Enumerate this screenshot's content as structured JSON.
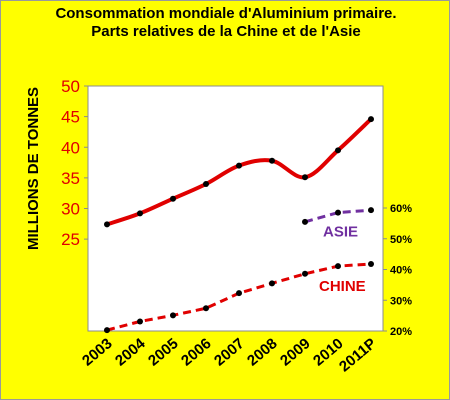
{
  "chart_data": {
    "type": "line",
    "title": "Consommation mondiale d'Aluminium primaire.",
    "subtitle": "Parts relatives de la Chine et de l'Asie",
    "ylabel": "MILLIONS DE TONNES",
    "categories": [
      "2003",
      "2004",
      "2005",
      "2006",
      "2007",
      "2008",
      "2009",
      "2010",
      "2011P"
    ],
    "y_left": {
      "ticks": [
        "50",
        "45",
        "40",
        "35",
        "30",
        "25"
      ],
      "range": [
        10,
        50
      ]
    },
    "y_right": {
      "ticks": [
        "60%",
        "50%",
        "40%",
        "30%",
        "20%"
      ],
      "range": [
        20,
        60
      ]
    },
    "grid": false,
    "series": [
      {
        "axis": "left",
        "style": "solid",
        "color": "#e00000",
        "values": [
          27.4,
          29.2,
          31.6,
          34.0,
          37.0,
          37.8,
          35.1,
          39.5,
          44.6
        ]
      },
      {
        "name": "ASIE",
        "axis": "right",
        "style": "dashed",
        "color": "#7030a0",
        "values": [
          null,
          null,
          null,
          null,
          null,
          null,
          55.5,
          58.5,
          59.3
        ]
      },
      {
        "name": "CHINE",
        "axis": "right",
        "style": "dashed",
        "color": "#e00000",
        "values": [
          20.3,
          23.1,
          25.1,
          27.4,
          32.3,
          35.5,
          38.6,
          41.1,
          41.8
        ]
      }
    ]
  }
}
